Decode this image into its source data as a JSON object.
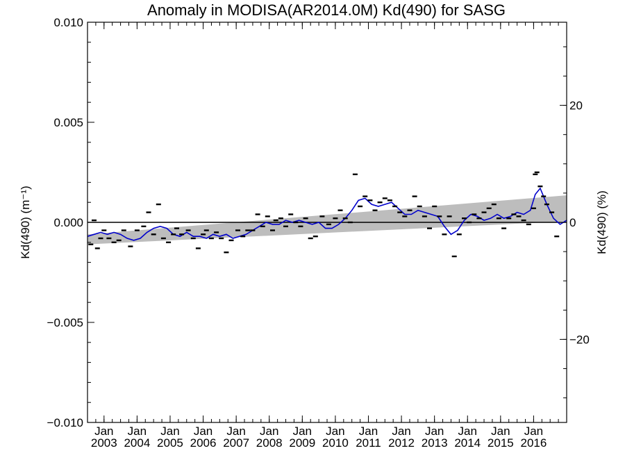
{
  "chart_data": {
    "type": "line",
    "title": "Anomaly in MODISA(AR2014.0M) Kd(490) for SASG",
    "ylabel_left": "Kd(490) (m⁻¹)",
    "ylabel_right": "Kd(490) (%)",
    "xlim": [
      2002.5,
      2017.0
    ],
    "ylim": [
      -0.01,
      0.01
    ],
    "y_right_lim": [
      -34.2,
      34.2
    ],
    "yticks_left": [
      {
        "value": -0.01,
        "label": "−0.010"
      },
      {
        "value": -0.005,
        "label": "−0.005"
      },
      {
        "value": 0.0,
        "label": "0.000"
      },
      {
        "value": 0.005,
        "label": "0.005"
      },
      {
        "value": 0.01,
        "label": "0.010"
      }
    ],
    "yticks_right": [
      {
        "value": -20,
        "label": "−20"
      },
      {
        "value": 0,
        "label": "0"
      },
      {
        "value": 20,
        "label": "20"
      }
    ],
    "xtick_month_label": "Jan",
    "xticks": [
      {
        "value": 2003,
        "label": "2003"
      },
      {
        "value": 2004,
        "label": "2004"
      },
      {
        "value": 2005,
        "label": "2005"
      },
      {
        "value": 2006,
        "label": "2006"
      },
      {
        "value": 2007,
        "label": "2007"
      },
      {
        "value": 2008,
        "label": "2008"
      },
      {
        "value": 2009,
        "label": "2009"
      },
      {
        "value": 2010,
        "label": "2010"
      },
      {
        "value": 2011,
        "label": "2011"
      },
      {
        "value": 2012,
        "label": "2012"
      },
      {
        "value": 2013,
        "label": "2013"
      },
      {
        "value": 2014,
        "label": "2014"
      },
      {
        "value": 2015,
        "label": "2015"
      },
      {
        "value": 2016,
        "label": "2016"
      }
    ],
    "trend_band": {
      "x": [
        2002.5,
        2017.0
      ],
      "lower": [
        -0.0011,
        5e-05
      ],
      "upper": [
        -0.0006,
        0.00135
      ]
    },
    "zero_line": 0.0,
    "series": [
      {
        "type": "line",
        "color": "#0000cc",
        "x": [
          2002.5,
          2002.7,
          2002.9,
          2003.1,
          2003.3,
          2003.5,
          2003.7,
          2003.9,
          2004.1,
          2004.3,
          2004.5,
          2004.7,
          2004.9,
          2005.1,
          2005.3,
          2005.5,
          2005.7,
          2005.9,
          2006.1,
          2006.3,
          2006.5,
          2006.7,
          2006.9,
          2007.1,
          2007.3,
          2007.5,
          2007.7,
          2007.9,
          2008.1,
          2008.3,
          2008.5,
          2008.7,
          2008.9,
          2009.1,
          2009.3,
          2009.5,
          2009.7,
          2009.9,
          2010.1,
          2010.3,
          2010.5,
          2010.7,
          2010.9,
          2011.1,
          2011.3,
          2011.5,
          2011.7,
          2011.9,
          2012.1,
          2012.3,
          2012.5,
          2012.7,
          2012.9,
          2013.1,
          2013.3,
          2013.5,
          2013.7,
          2013.9,
          2014.1,
          2014.3,
          2014.5,
          2014.7,
          2014.9,
          2015.1,
          2015.3,
          2015.5,
          2015.7,
          2015.9,
          2016.05,
          2016.2,
          2016.4,
          2016.6,
          2016.8,
          2017.0
        ],
        "y": [
          -0.0007,
          -0.0006,
          -0.0005,
          -0.0006,
          -0.0005,
          -0.0006,
          -0.0008,
          -0.0009,
          -0.0008,
          -0.0005,
          -0.0003,
          -0.0002,
          -0.0003,
          -0.0006,
          -0.0007,
          -0.0005,
          -0.0007,
          -0.0007,
          -0.0008,
          -0.0006,
          -0.0007,
          -0.0006,
          -0.0008,
          -0.0007,
          -0.0006,
          -0.0004,
          -0.0002,
          0.0,
          -0.0001,
          -0.0001,
          0.0001,
          0.0,
          0.0001,
          0.0,
          -0.0001,
          0.0,
          -0.0003,
          -0.0003,
          -0.0001,
          0.0002,
          0.0006,
          0.0011,
          0.0012,
          0.0009,
          0.0008,
          0.0009,
          0.001,
          0.0007,
          0.0004,
          0.0004,
          0.0006,
          0.0005,
          0.0004,
          0.0003,
          -0.0002,
          -0.0006,
          -0.0004,
          0.0001,
          0.0004,
          0.0003,
          0.0001,
          0.0002,
          0.0004,
          0.0002,
          0.0003,
          0.0005,
          0.0004,
          0.0006,
          0.0014,
          0.0017,
          0.0009,
          0.0002,
          -0.0001,
          0.0001
        ]
      },
      {
        "type": "scatter",
        "marker": "dash",
        "color": "#000000",
        "x": [
          2002.6,
          2002.7,
          2002.8,
          2002.9,
          2003.0,
          2003.15,
          2003.3,
          2003.45,
          2003.6,
          2003.8,
          2004.0,
          2004.2,
          2004.35,
          2004.5,
          2004.65,
          2004.8,
          2004.95,
          2005.1,
          2005.2,
          2005.35,
          2005.55,
          2005.7,
          2005.85,
          2006.0,
          2006.1,
          2006.25,
          2006.4,
          2006.55,
          2006.7,
          2006.85,
          2007.05,
          2007.2,
          2007.35,
          2007.5,
          2007.65,
          2007.8,
          2007.95,
          2008.1,
          2008.2,
          2008.35,
          2008.5,
          2008.65,
          2008.8,
          2008.95,
          2009.1,
          2009.25,
          2009.4,
          2009.6,
          2009.8,
          2010.0,
          2010.15,
          2010.3,
          2010.45,
          2010.6,
          2010.75,
          2010.9,
          2011.05,
          2011.2,
          2011.35,
          2011.5,
          2011.65,
          2011.8,
          2011.95,
          2012.1,
          2012.25,
          2012.4,
          2012.55,
          2012.7,
          2012.85,
          2013.0,
          2013.15,
          2013.3,
          2013.45,
          2013.6,
          2013.75,
          2013.9,
          2014.05,
          2014.2,
          2014.35,
          2014.5,
          2014.65,
          2014.8,
          2014.95,
          2015.1,
          2015.25,
          2015.4,
          2015.55,
          2015.7,
          2015.85,
          2016.0,
          2016.05,
          2016.1,
          2016.2,
          2016.3,
          2016.4,
          2016.55,
          2016.7
        ],
        "y": [
          -0.0011,
          0.0001,
          -0.0013,
          -0.0008,
          -0.0004,
          -0.0008,
          -0.001,
          -0.0009,
          -0.0004,
          -0.0012,
          -0.0004,
          -0.0002,
          0.0005,
          -0.0006,
          0.0009,
          -0.0008,
          -0.001,
          -0.0006,
          -0.0003,
          -0.0006,
          -0.0004,
          -0.0008,
          -0.0013,
          -0.0006,
          -0.0004,
          -0.0008,
          -0.0005,
          -0.0008,
          -0.0015,
          -0.0009,
          -0.0004,
          -0.0007,
          -0.0004,
          -0.0004,
          0.0004,
          -0.0002,
          0.0003,
          -0.0004,
          0.0001,
          0.0002,
          -0.0002,
          0.0004,
          0.0,
          -0.0002,
          0.0002,
          -0.0008,
          -0.0007,
          0.0003,
          -0.0001,
          0.0002,
          0.0006,
          0.0002,
          0.0,
          0.0024,
          0.0008,
          0.0013,
          0.0011,
          0.0006,
          0.001,
          0.0012,
          0.0011,
          0.0008,
          0.0005,
          0.0003,
          0.0006,
          0.0013,
          0.0008,
          0.0003,
          -0.0003,
          0.0008,
          0.0003,
          -0.0006,
          0.0003,
          -0.0017,
          -0.0006,
          0.0002,
          0.0,
          0.0004,
          0.0002,
          0.0005,
          0.0007,
          0.0009,
          0.0002,
          -0.0003,
          0.0002,
          0.0004,
          0.0003,
          0.0001,
          -0.0001,
          0.0007,
          0.0024,
          0.0025,
          0.0018,
          0.0013,
          0.0009,
          0.0005,
          -0.0007
        ]
      }
    ]
  }
}
